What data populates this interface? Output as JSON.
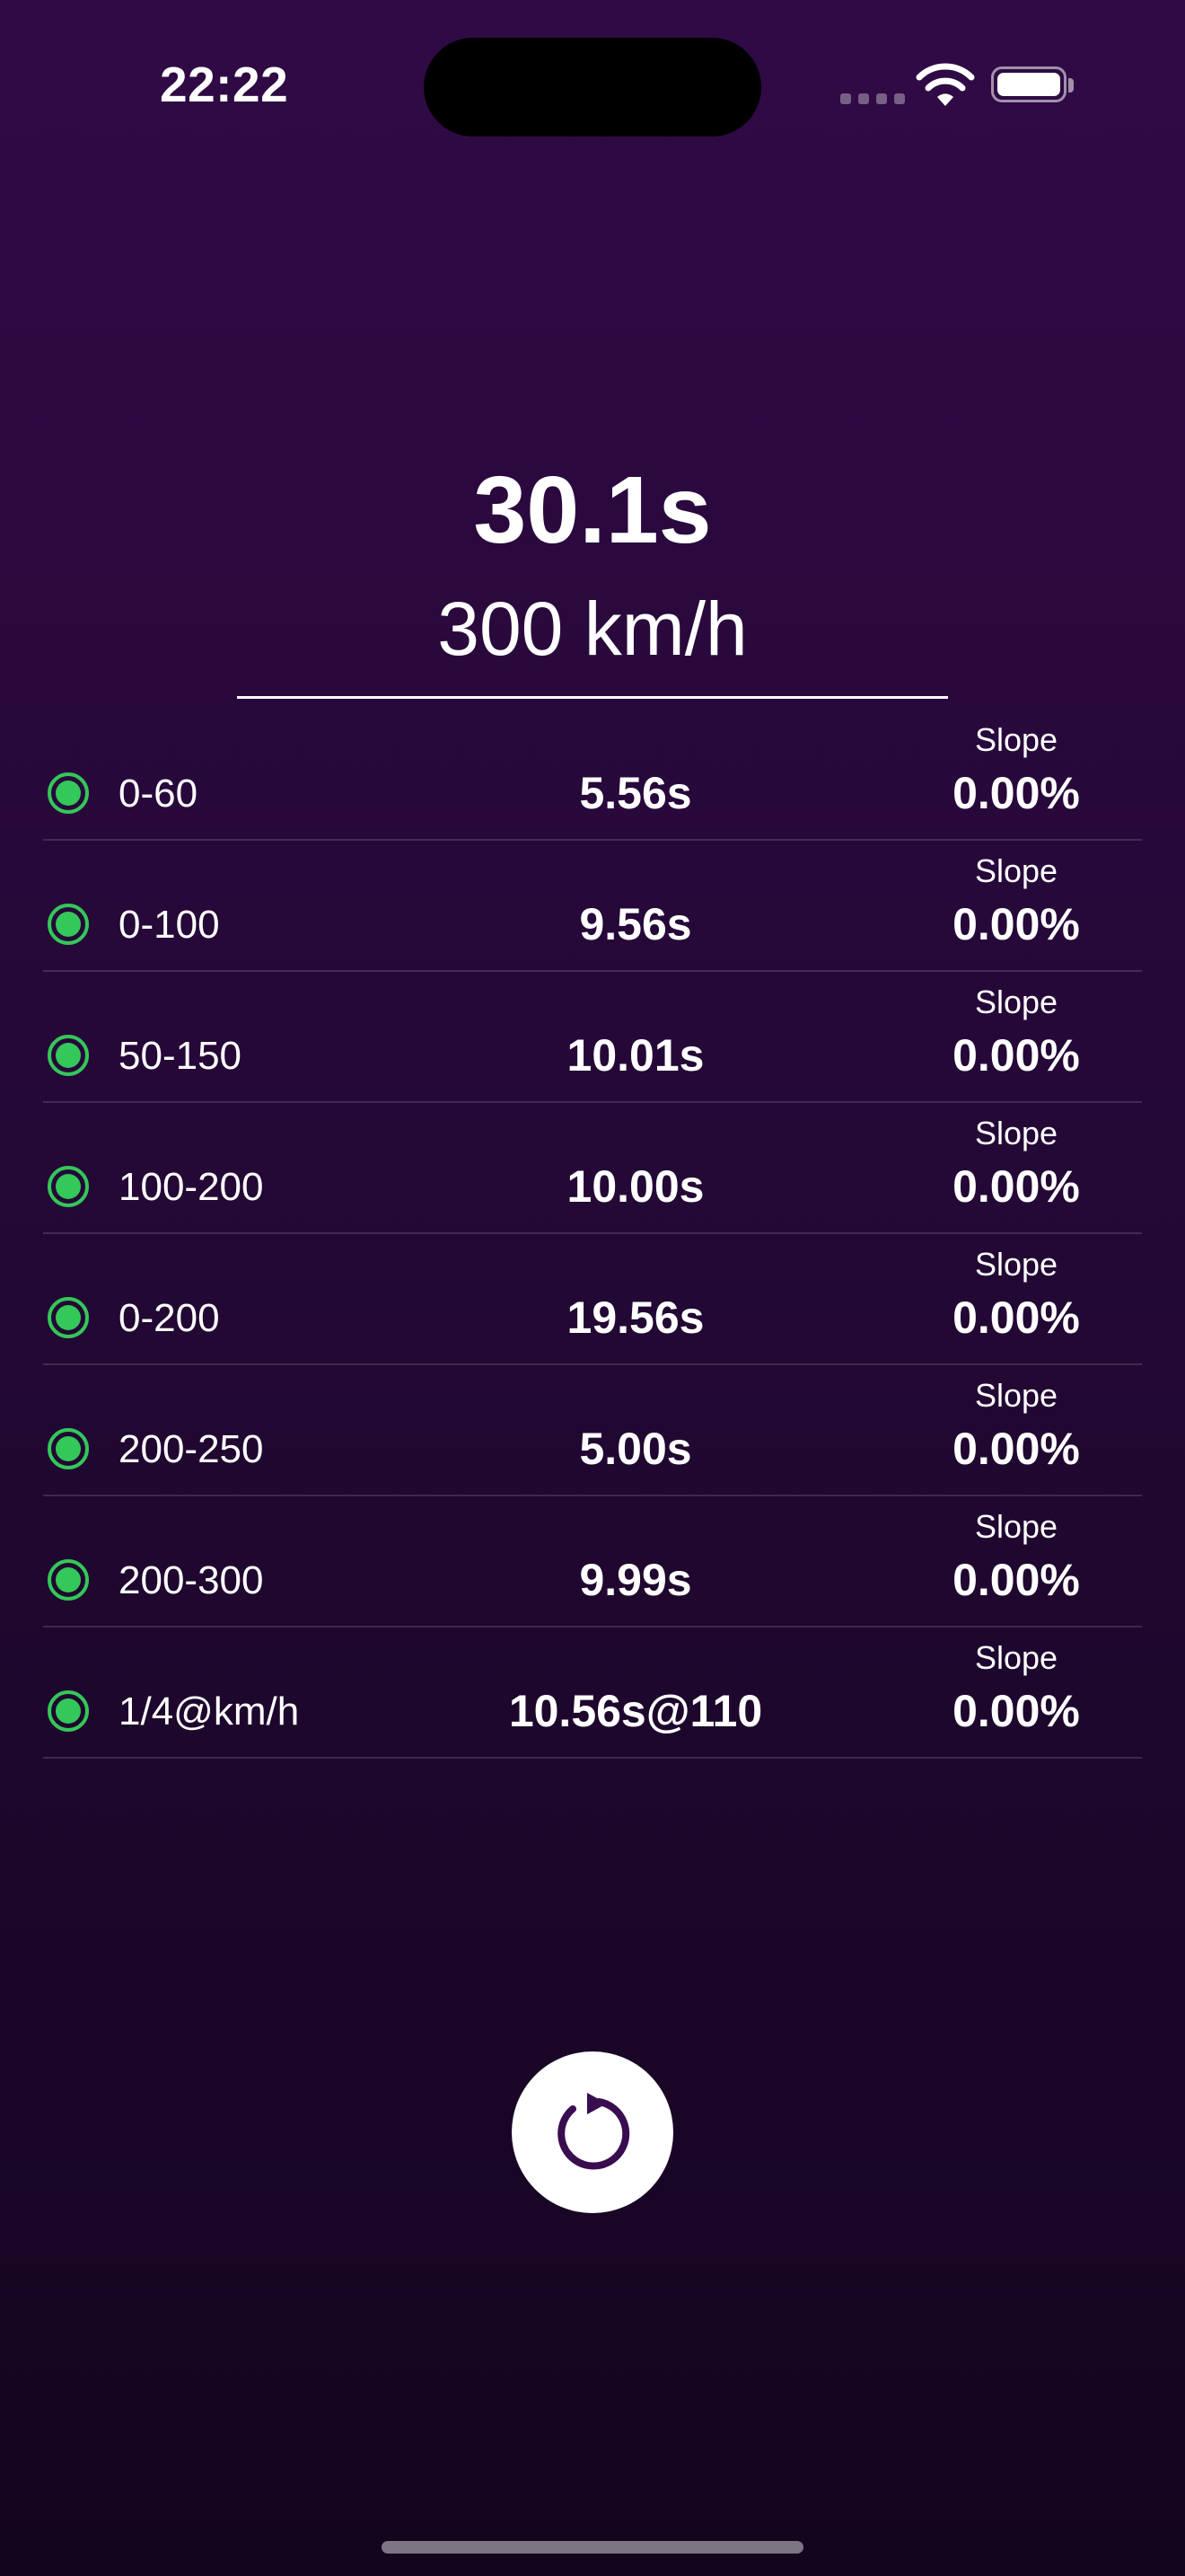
{
  "status_bar": {
    "time": "22:22",
    "signal_icon": "cellular-signal-icon",
    "wifi_icon": "wifi-icon",
    "battery_icon": "battery-icon",
    "battery_level": 1.0
  },
  "summary": {
    "total_time": "30.1s",
    "top_speed": "300 km/h"
  },
  "results": [
    {
      "range": "0-60",
      "time": "5.56s",
      "slope_label": "Slope",
      "slope": "0.00%"
    },
    {
      "range": "0-100",
      "time": "9.56s",
      "slope_label": "Slope",
      "slope": "0.00%"
    },
    {
      "range": "50-150",
      "time": "10.01s",
      "slope_label": "Slope",
      "slope": "0.00%"
    },
    {
      "range": "100-200",
      "time": "10.00s",
      "slope_label": "Slope",
      "slope": "0.00%"
    },
    {
      "range": "0-200",
      "time": "19.56s",
      "slope_label": "Slope",
      "slope": "0.00%"
    },
    {
      "range": "200-250",
      "time": "5.00s",
      "slope_label": "Slope",
      "slope": "0.00%"
    },
    {
      "range": "200-300",
      "time": "9.99s",
      "slope_label": "Slope",
      "slope": "0.00%"
    },
    {
      "range": "1/4@km/h",
      "time": "10.56s@110",
      "slope_label": "Slope",
      "slope": "0.00%"
    }
  ],
  "reset_button": {
    "icon": "reset-icon"
  },
  "colors": {
    "background_top": "#300a45",
    "background_bottom": "#14051e",
    "status_dot": "#34c759",
    "reset_icon": "#3a0d50"
  }
}
